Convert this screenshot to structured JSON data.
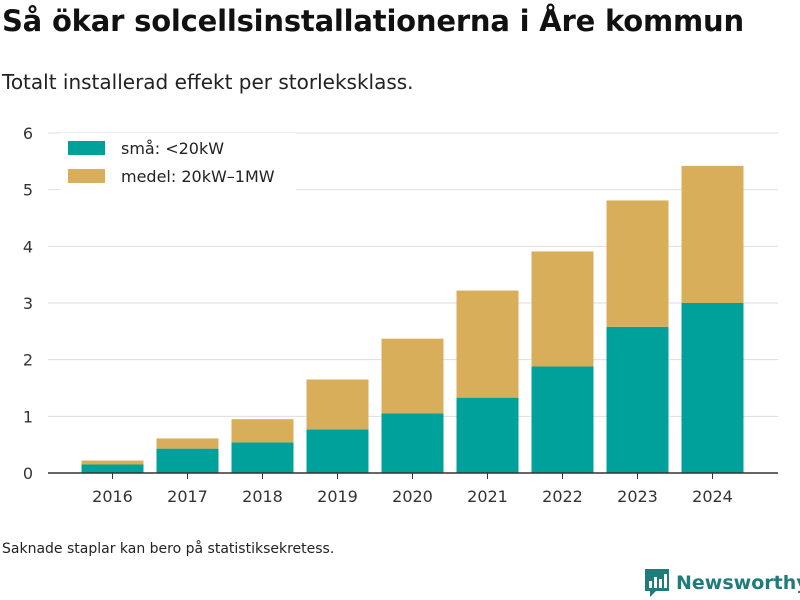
{
  "header": {
    "title": "Så ökar solcellsinstallationerna i Åre kommun",
    "subtitle": "Totalt installerad effekt per storleksklass."
  },
  "footer": {
    "note": "Saknade staplar kan bero på statistiksekretess.",
    "brand": "Newsworthy",
    "brand_color": "#1f7c7a"
  },
  "chart_data": {
    "type": "bar",
    "stacked": true,
    "categories": [
      "2016",
      "2017",
      "2018",
      "2019",
      "2020",
      "2021",
      "2022",
      "2023",
      "2024"
    ],
    "series": [
      {
        "name": "små: <20kW",
        "color": "#00a19a",
        "values": [
          0.15,
          0.43,
          0.54,
          0.77,
          1.05,
          1.33,
          1.88,
          2.58,
          3.0
        ]
      },
      {
        "name": "medel: 20kW–1MW",
        "color": "#d9ae5b",
        "values": [
          0.07,
          0.18,
          0.41,
          0.88,
          1.32,
          1.89,
          2.03,
          2.23,
          2.42
        ]
      }
    ],
    "yticks": [
      0,
      1,
      2,
      3,
      4,
      5,
      6
    ],
    "ylim": [
      0,
      6
    ],
    "grid": true,
    "legend_position": "top-left"
  }
}
